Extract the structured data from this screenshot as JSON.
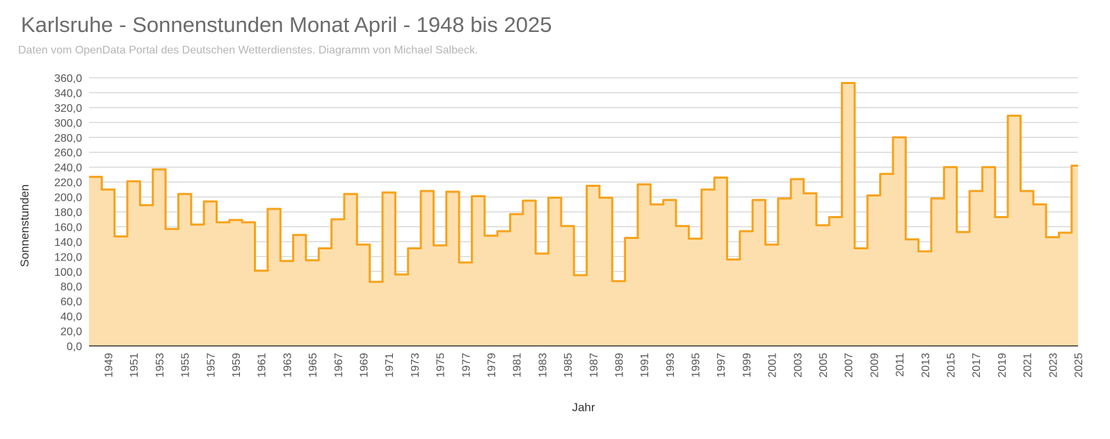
{
  "title": "Karlsruhe - Sonnenstunden Monat April - 1948 bis 2025",
  "subtitle": "Daten vom OpenData Portal des Deutschen Wetterdienstes. Diagramm von Michael Salbeck.",
  "colors": {
    "line": "#f7a21b",
    "fill": "#fddfae",
    "grid": "#d0d0d0",
    "axis": "#333333"
  },
  "chart_data": {
    "type": "area",
    "step": true,
    "xlabel": "Jahr",
    "ylabel": "Sonnenstunden",
    "ylim": [
      0,
      360
    ],
    "ytick_step": 20,
    "ytick_labels": [
      "0,0",
      "20,0",
      "40,0",
      "60,0",
      "80,0",
      "100,0",
      "120,0",
      "140,0",
      "160,0",
      "180,0",
      "200,0",
      "220,0",
      "240,0",
      "260,0",
      "280,0",
      "300,0",
      "320,0",
      "340,0",
      "360,0"
    ],
    "xtick_labels": [
      "1949",
      "1951",
      "1953",
      "1955",
      "1957",
      "1959",
      "1961",
      "1963",
      "1965",
      "1967",
      "1969",
      "1971",
      "1973",
      "1975",
      "1977",
      "1979",
      "1981",
      "1983",
      "1985",
      "1987",
      "1989",
      "1991",
      "1993",
      "1995",
      "1997",
      "1999",
      "2001",
      "2003",
      "2005",
      "2007",
      "2009",
      "2011",
      "2013",
      "2015",
      "2017",
      "2019",
      "2021",
      "2023",
      "2025"
    ],
    "grid": true,
    "legend": "none",
    "x": [
      1948,
      1949,
      1950,
      1951,
      1952,
      1953,
      1954,
      1955,
      1956,
      1957,
      1958,
      1959,
      1960,
      1961,
      1962,
      1963,
      1964,
      1965,
      1966,
      1967,
      1968,
      1969,
      1970,
      1971,
      1972,
      1973,
      1974,
      1975,
      1976,
      1977,
      1978,
      1979,
      1980,
      1981,
      1982,
      1983,
      1984,
      1985,
      1986,
      1987,
      1988,
      1989,
      1990,
      1991,
      1992,
      1993,
      1994,
      1995,
      1996,
      1997,
      1998,
      1999,
      2000,
      2001,
      2002,
      2003,
      2004,
      2005,
      2006,
      2007,
      2008,
      2009,
      2010,
      2011,
      2012,
      2013,
      2014,
      2015,
      2016,
      2017,
      2018,
      2019,
      2020,
      2021,
      2022,
      2023,
      2024,
      2025
    ],
    "values": [
      227,
      210,
      147,
      221,
      189,
      237,
      157,
      204,
      163,
      194,
      166,
      169,
      166,
      101,
      184,
      114,
      149,
      115,
      131,
      170,
      204,
      136,
      86,
      206,
      96,
      131,
      208,
      135,
      207,
      112,
      201,
      148,
      154,
      177,
      195,
      124,
      199,
      161,
      95,
      215,
      199,
      87,
      145,
      217,
      190,
      196,
      161,
      144,
      210,
      226,
      116,
      154,
      196,
      136,
      198,
      224,
      205,
      162,
      173,
      353,
      131,
      202,
      231,
      280,
      143,
      127,
      198,
      240,
      153,
      208,
      240,
      173,
      309,
      208,
      190,
      146,
      152,
      242
    ]
  }
}
